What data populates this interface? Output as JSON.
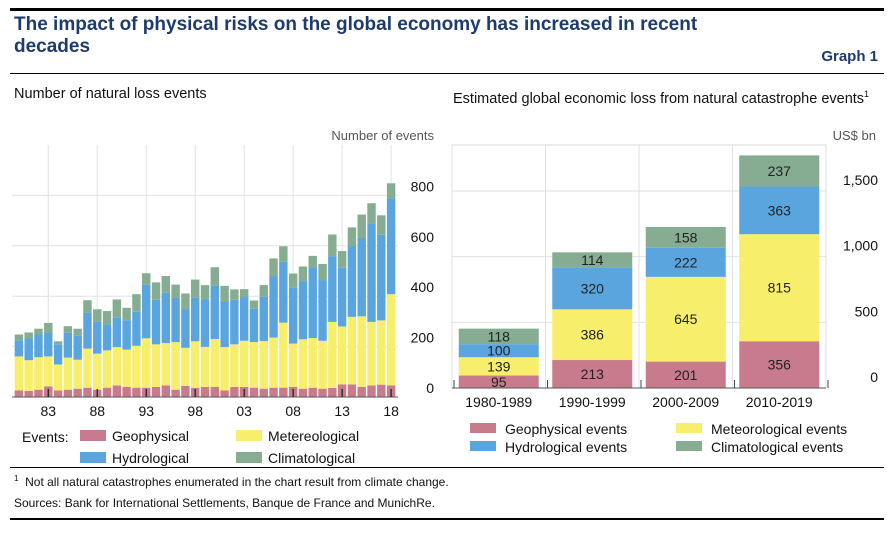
{
  "header": {
    "title": "The impact of physical risks on the global economy has increased in recent decades",
    "graph_label": "Graph 1"
  },
  "chart_data": [
    {
      "type": "bar",
      "stacked": true,
      "title": "Number of natural loss events",
      "ylabel": "Number of events",
      "ylim": [
        0,
        1000
      ],
      "yticks": [
        0,
        200,
        400,
        600,
        800
      ],
      "grid": true,
      "x": [
        1980,
        1981,
        1982,
        1983,
        1984,
        1985,
        1986,
        1987,
        1988,
        1989,
        1990,
        1991,
        1992,
        1993,
        1994,
        1995,
        1996,
        1997,
        1998,
        1999,
        2000,
        2001,
        2002,
        2003,
        2004,
        2005,
        2006,
        2007,
        2008,
        2009,
        2010,
        2011,
        2012,
        2013,
        2014,
        2015,
        2016,
        2017,
        2018
      ],
      "xtick_labels": [
        "83",
        "88",
        "93",
        "98",
        "03",
        "08",
        "13",
        "18"
      ],
      "xtick_years": [
        1983,
        1988,
        1993,
        1998,
        2003,
        2008,
        2013,
        2018
      ],
      "legend_title": "Events:",
      "legend_placement": "bottom",
      "series": [
        {
          "name": "Geophysical",
          "color": "#c97b8e",
          "values": [
            26,
            24,
            29,
            42,
            26,
            29,
            33,
            37,
            29,
            37,
            46,
            40,
            37,
            37,
            40,
            46,
            29,
            44,
            36,
            40,
            40,
            26,
            40,
            40,
            37,
            33,
            37,
            37,
            40,
            33,
            37,
            33,
            36,
            50,
            50,
            40,
            46,
            49,
            46
          ]
        },
        {
          "name": "Metereological",
          "color": "#f7ee6c",
          "values": [
            135,
            122,
            129,
            119,
            103,
            127,
            115,
            155,
            143,
            148,
            152,
            148,
            166,
            196,
            169,
            168,
            189,
            151,
            185,
            159,
            190,
            172,
            169,
            183,
            181,
            189,
            199,
            258,
            172,
            196,
            197,
            190,
            262,
            230,
            268,
            280,
            252,
            255,
            362
          ]
        },
        {
          "name": "Hydrological",
          "color": "#5aa5de",
          "values": [
            64,
            86,
            90,
            93,
            80,
            99,
            97,
            143,
            126,
            103,
            117,
            117,
            135,
            212,
            177,
            200,
            175,
            154,
            172,
            188,
            212,
            179,
            177,
            172,
            132,
            176,
            244,
            241,
            222,
            231,
            280,
            241,
            261,
            233,
            281,
            311,
            391,
            340,
            380
          ]
        },
        {
          "name": "Climatological",
          "color": "#86ad92",
          "values": [
            23,
            24,
            23,
            40,
            12,
            26,
            26,
            49,
            50,
            53,
            72,
            49,
            70,
            46,
            69,
            66,
            53,
            62,
            73,
            57,
            73,
            64,
            41,
            33,
            33,
            46,
            70,
            62,
            56,
            58,
            46,
            64,
            86,
            66,
            74,
            93,
            80,
            77,
            60
          ]
        }
      ]
    },
    {
      "type": "bar",
      "stacked": true,
      "title": "Estimated global economic loss from natural catastrophe events",
      "title_footnote": "1",
      "ylabel": "US$ bn",
      "ylim": [
        0,
        1850
      ],
      "yticks": [
        0,
        500,
        1000,
        1500
      ],
      "ytick_labels": [
        "0",
        "500",
        "1,000",
        "1,500"
      ],
      "categories": [
        "1980-1989",
        "1990-1999",
        "2000-2009",
        "2010-2019"
      ],
      "legend_placement": "bottom",
      "series": [
        {
          "name": "Geophysical events",
          "color": "#c97b8e",
          "values": [
            95,
            213,
            201,
            356
          ]
        },
        {
          "name": "Meteorological events",
          "color": "#f7ee6c",
          "values": [
            139,
            386,
            645,
            815
          ]
        },
        {
          "name": "Hydrological events",
          "color": "#5aa5de",
          "values": [
            100,
            320,
            222,
            363
          ]
        },
        {
          "name": "Climatological events",
          "color": "#86ad92",
          "values": [
            118,
            114,
            158,
            237
          ]
        }
      ]
    }
  ],
  "footer": {
    "footnote_mark": "1",
    "footnote": "Not all natural catastrophes enumerated in the chart result from climate change.",
    "sources": "Sources: Bank for International Settlements, Banque de France and MunichRe."
  }
}
